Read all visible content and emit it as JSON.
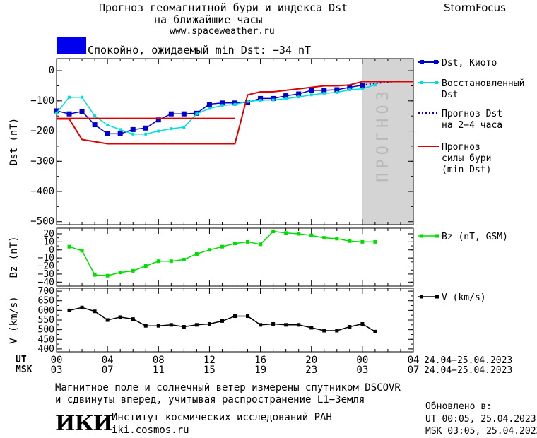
{
  "header": {
    "title_line1": "Прогноз геомагнитной бури и индекса Dst",
    "title_line2": "на ближайшие часы",
    "url": "www.spaceweather.ru",
    "brand": "StormFocus",
    "status_text": "Спокойно, ожидаемый min Dst: −34 nT",
    "status_color": "#0000ee"
  },
  "chart_data": [
    {
      "type": "line",
      "panel": "dst",
      "ylabel": "Dst (nT)",
      "ylim": [
        -510,
        40
      ],
      "yticks": [
        0,
        -100,
        -200,
        -300,
        -400,
        -500
      ],
      "ytick_labels": [
        "0",
        "−100",
        "−200",
        "−300",
        "−400",
        "−500"
      ],
      "xlim": [
        0,
        28
      ],
      "forecast_band": [
        24,
        28
      ],
      "forecast_label": "ПРОГНОЗ",
      "legend": [
        {
          "key": "dst",
          "label_lines": [
            "Dst, Киото"
          ],
          "color": "#0000cc",
          "style": "line-marker"
        },
        {
          "key": "restored",
          "label_lines": [
            "Восстановленный",
            "Dst"
          ],
          "color": "#00dddd",
          "style": "line-marker-small"
        },
        {
          "key": "forecast24",
          "label_lines": [
            "Прогноз Dst",
            "на 2−4 часа"
          ],
          "color": "#0000cc",
          "style": "dotted"
        },
        {
          "key": "storm",
          "label_lines": [
            "Прогноз",
            "силы бури",
            "(min Dst)"
          ],
          "color": "#dd0000",
          "style": "line"
        }
      ],
      "series": [
        {
          "name": "Dst, Киото",
          "color": "#0000cc",
          "x": [
            0,
            1,
            2,
            3,
            4,
            5,
            6,
            7,
            8,
            9,
            10,
            11,
            12,
            13,
            14,
            15,
            16,
            17,
            18,
            19,
            20,
            21,
            22,
            23,
            24
          ],
          "y": [
            -133,
            -143,
            -135,
            -179,
            -209,
            -209,
            -195,
            -190,
            -163,
            -143,
            -143,
            -141,
            -111,
            -107,
            -107,
            -105,
            -92,
            -92,
            -83,
            -77,
            -65,
            -65,
            -63,
            -55,
            -48
          ]
        },
        {
          "name": "Восстановленный Dst",
          "color": "#00dddd",
          "x": [
            0,
            1,
            2,
            3,
            4,
            5,
            6,
            7,
            8,
            9,
            10,
            11,
            12,
            13,
            14,
            15,
            16,
            17,
            18,
            19,
            20,
            21,
            22,
            23,
            24,
            25
          ],
          "y": [
            -140,
            -88,
            -88,
            -150,
            -180,
            -195,
            -210,
            -210,
            -200,
            -192,
            -187,
            -143,
            -125,
            -115,
            -112,
            -102,
            -98,
            -97,
            -93,
            -87,
            -80,
            -75,
            -72,
            -63,
            -60,
            -47
          ]
        },
        {
          "name": "Прогноз Dst на 2−4 часа",
          "color": "#0000cc",
          "x": [
            24,
            25,
            26,
            27
          ],
          "y": [
            -48,
            -42,
            -38,
            -34
          ]
        },
        {
          "name": "Прогноз силы бури (min Dst)",
          "color": "#dd0000",
          "x": [
            0,
            1,
            2,
            3,
            4,
            5,
            6,
            7,
            8,
            9,
            10,
            11,
            12,
            13,
            14,
            15,
            16,
            17,
            18,
            19,
            20,
            21,
            22,
            23,
            24,
            25,
            26,
            27,
            28
          ],
          "y": [
            -160,
            -160,
            -228,
            -235,
            -242,
            -242,
            -242,
            -242,
            -242,
            -242,
            -242,
            -242,
            -242,
            -242,
            -242,
            -80,
            -70,
            -70,
            -65,
            -60,
            -55,
            -50,
            -50,
            -47,
            -36,
            -36,
            -36,
            -36,
            -36
          ]
        },
        {
          "name": "Прогноз силы бури (уровень)",
          "color": "#dd0000",
          "x": [
            0,
            14
          ],
          "y": [
            -158,
            -158
          ]
        }
      ]
    },
    {
      "type": "line",
      "panel": "bz",
      "ylabel": "Bz (nT)",
      "ylim": [
        -45,
        27
      ],
      "yticks": [
        20,
        10,
        0,
        -10,
        -20,
        -30,
        -40
      ],
      "ytick_labels": [
        "20",
        "10",
        "0",
        "−10",
        "−20",
        "−30",
        "−40"
      ],
      "xlim": [
        0,
        28
      ],
      "legend": [
        {
          "label_lines": [
            "Bz (nT, GSM)"
          ],
          "color": "#00dd00"
        }
      ],
      "series": [
        {
          "name": "Bz (nT, GSM)",
          "color": "#00dd00",
          "x": [
            1,
            2,
            3,
            4,
            5,
            6,
            7,
            8,
            9,
            10,
            11,
            12,
            13,
            14,
            15,
            16,
            17,
            18,
            19,
            20,
            21,
            22,
            23,
            24,
            25
          ],
          "y": [
            4,
            -1,
            -31,
            -32,
            -28,
            -26,
            -20,
            -14,
            -14,
            -12,
            -5,
            0,
            4,
            8,
            10,
            7,
            23,
            21,
            20,
            18,
            15,
            14,
            11,
            10,
            10
          ]
        }
      ]
    },
    {
      "type": "line",
      "panel": "v",
      "ylabel": "V (km/s)",
      "ylim": [
        385,
        715
      ],
      "yticks": [
        700,
        650,
        600,
        550,
        500,
        450,
        400
      ],
      "ytick_labels": [
        "700",
        "650",
        "600",
        "550",
        "500",
        "450",
        "400"
      ],
      "xlim": [
        0,
        28
      ],
      "legend": [
        {
          "label_lines": [
            "V (km/s)"
          ],
          "color": "#000000"
        }
      ],
      "series": [
        {
          "name": "V (km/s)",
          "color": "#000000",
          "x": [
            1,
            2,
            3,
            4,
            5,
            6,
            7,
            8,
            9,
            10,
            11,
            12,
            13,
            14,
            15,
            16,
            17,
            18,
            19,
            20,
            21,
            22,
            23,
            24,
            25
          ],
          "y": [
            600,
            615,
            595,
            550,
            565,
            555,
            520,
            520,
            525,
            515,
            525,
            530,
            545,
            570,
            570,
            525,
            530,
            525,
            525,
            510,
            495,
            495,
            515,
            530,
            490
          ]
        }
      ]
    }
  ],
  "axis": {
    "ut_label": "UT",
    "msk_label": "MSK",
    "ut_ticks": [
      "00",
      "04",
      "08",
      "12",
      "16",
      "20",
      "00",
      "04"
    ],
    "msk_ticks": [
      "03",
      "07",
      "11",
      "15",
      "19",
      "23",
      "03",
      "07"
    ],
    "ut_range": "24.04−25.04.2023",
    "msk_range": "24.04−25.04.2023"
  },
  "footer": {
    "note_line1": "Магнитное поле и солнечный ветер измерены спутником DSCOVR",
    "note_line2": "и сдвинуты вперед, учитывая распространение L1−Земля",
    "logo": "ИКИ",
    "institute": "Институт космических исследований РАН",
    "site": "iki.cosmos.ru",
    "updated_label": "Обновлено в:",
    "updated_ut": "UT  00:05, 25.04.2023",
    "updated_msk": "MSK 03:05, 25.04.2023"
  }
}
